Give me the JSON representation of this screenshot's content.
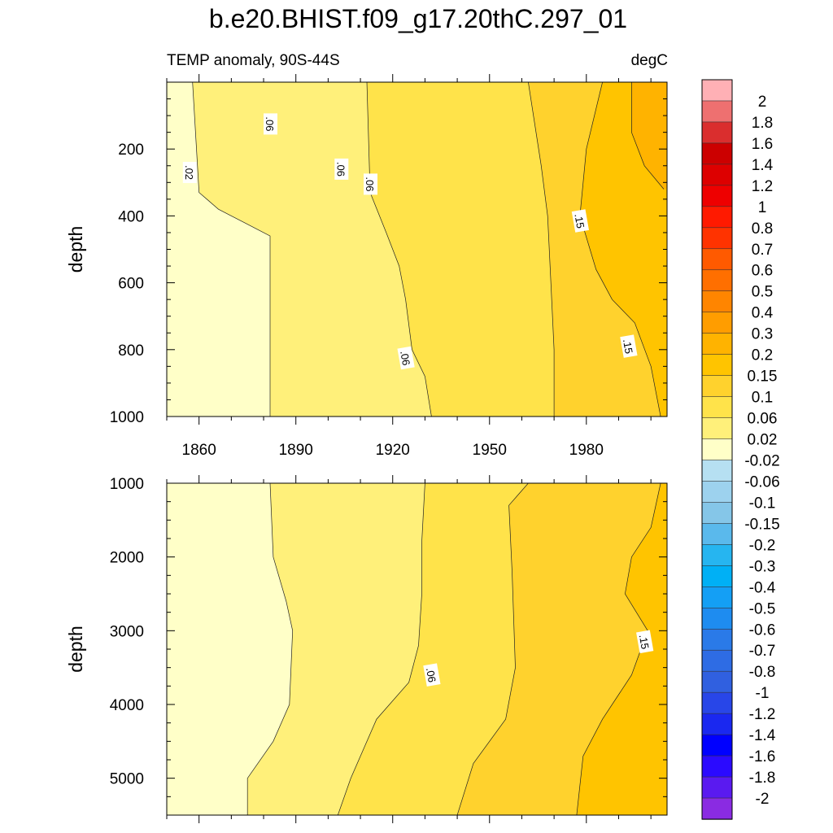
{
  "chart_data": {
    "type": "heatmap",
    "title": "b.e20.BHIST.f09_g17.20thC.297_01",
    "subtitle_left": "TEMP anomaly, 90S-44S",
    "subtitle_right": "degC",
    "x_ticks": [
      "1860",
      "1890",
      "1920",
      "1950",
      "1980"
    ],
    "x_range": [
      1850,
      2005
    ],
    "x_tick_values": [
      1860,
      1890,
      1920,
      1950,
      1980
    ],
    "panels": [
      {
        "name": "upper",
        "ylabel": "depth",
        "ylim": [
          0,
          1000
        ],
        "y_ticks": [
          "200",
          "400",
          "600",
          "800",
          "1000"
        ],
        "y_tick_values": [
          200,
          400,
          600,
          800,
          1000
        ],
        "contour_labels": [
          {
            "text": ".06",
            "x": 1882,
            "y": 125
          },
          {
            "text": ".02",
            "x": 1857,
            "y": 270
          },
          {
            "text": ".06",
            "x": 1904,
            "y": 260
          },
          {
            "text": ".06",
            "x": 1913,
            "y": 305
          },
          {
            "text": ".15",
            "x": 1978,
            "y": 415
          },
          {
            "text": ".06",
            "x": 1924,
            "y": 825
          },
          {
            "text": ".15",
            "x": 1993,
            "y": 790
          }
        ],
        "contour_boundaries": [
          {
            "level": 0.02,
            "points": [
              [
                1858,
                0
              ],
              [
                1860,
                330
              ],
              [
                1866,
                380
              ],
              [
                1870,
                400
              ],
              [
                1874,
                420
              ],
              [
                1882,
                460
              ],
              [
                1882,
                1000
              ]
            ]
          },
          {
            "level": 0.06,
            "points": [
              [
                1912,
                0
              ],
              [
                1913,
                330
              ],
              [
                1918,
                450
              ],
              [
                1922,
                550
              ],
              [
                1924,
                650
              ],
              [
                1926,
                800
              ],
              [
                1930,
                880
              ],
              [
                1932,
                1000
              ]
            ]
          },
          {
            "level": 0.1,
            "points": [
              [
                1962,
                0
              ],
              [
                1966,
                250
              ],
              [
                1968,
                400
              ],
              [
                1969,
                600
              ],
              [
                1970,
                800
              ],
              [
                1970,
                1000
              ]
            ]
          },
          {
            "level": 0.15,
            "points": [
              [
                1985,
                0
              ],
              [
                1980,
                200
              ],
              [
                1978,
                400
              ],
              [
                1983,
                560
              ],
              [
                1988,
                650
              ],
              [
                1995,
                720
              ],
              [
                2000,
                850
              ],
              [
                2003,
                1000
              ]
            ]
          },
          {
            "level": 0.2,
            "points": [
              [
                1994,
                0
              ],
              [
                1994,
                150
              ],
              [
                1998,
                250
              ],
              [
                2004,
                320
              ]
            ]
          }
        ]
      },
      {
        "name": "lower",
        "ylabel": "depth",
        "ylim": [
          1000,
          5500
        ],
        "y_ticks": [
          "1000",
          "2000",
          "3000",
          "4000",
          "5000"
        ],
        "y_tick_values": [
          1000,
          2000,
          3000,
          4000,
          5000
        ],
        "contour_labels": [
          {
            "text": ".06",
            "x": 1932,
            "y": 3600
          },
          {
            "text": ".15",
            "x": 1998,
            "y": 3150
          }
        ],
        "contour_boundaries": [
          {
            "level": 0.02,
            "points": [
              [
                1882,
                1000
              ],
              [
                1883,
                2000
              ],
              [
                1887,
                2600
              ],
              [
                1889,
                3000
              ],
              [
                1888,
                4000
              ],
              [
                1883,
                4500
              ],
              [
                1875,
                5000
              ],
              [
                1875,
                5500
              ]
            ]
          },
          {
            "level": 0.06,
            "points": [
              [
                1930,
                1000
              ],
              [
                1929,
                1800
              ],
              [
                1929,
                2500
              ],
              [
                1928,
                3200
              ],
              [
                1925,
                3700
              ],
              [
                1915,
                4200
              ],
              [
                1907,
                5000
              ],
              [
                1903,
                5500
              ]
            ]
          },
          {
            "level": 0.1,
            "points": [
              [
                1962,
                1000
              ],
              [
                1956,
                1300
              ],
              [
                1957,
                2200
              ],
              [
                1958,
                3500
              ],
              [
                1955,
                4200
              ],
              [
                1945,
                4800
              ],
              [
                1940,
                5500
              ]
            ]
          },
          {
            "level": 0.15,
            "points": [
              [
                2003,
                1000
              ],
              [
                2000,
                1600
              ],
              [
                1994,
                2000
              ],
              [
                1992,
                2500
              ],
              [
                1999,
                3000
              ],
              [
                1994,
                3600
              ],
              [
                1985,
                4200
              ],
              [
                1979,
                4700
              ],
              [
                1977,
                5500
              ]
            ]
          }
        ]
      }
    ],
    "colorbar": {
      "labels": [
        "2",
        "1.8",
        "1.6",
        "1.4",
        "1.2",
        "1",
        "0.8",
        "0.7",
        "0.6",
        "0.5",
        "0.4",
        "0.3",
        "0.2",
        "0.15",
        "0.1",
        "0.06",
        "0.02",
        "-0.02",
        "-0.06",
        "-0.1",
        "-0.15",
        "-0.2",
        "-0.3",
        "-0.4",
        "-0.5",
        "-0.6",
        "-0.7",
        "-0.8",
        "-1",
        "-1.2",
        "-1.4",
        "-1.6",
        "-1.8",
        "-2"
      ],
      "colors": [
        "#ffb0b5",
        "#ee7070",
        "#da2e2e",
        "#cc0000",
        "#dd0000",
        "#ee0000",
        "#ff1a00",
        "#ff3300",
        "#ff5a00",
        "#ff6f00",
        "#ff8500",
        "#ff9d00",
        "#ffb300",
        "#ffc400",
        "#ffd22d",
        "#ffe34a",
        "#fff07a",
        "#ffffc8",
        "#b6e0f2",
        "#9dd2ee",
        "#85c6e8",
        "#5ab9ec",
        "#26b5f0",
        "#00b0f5",
        "#149ff5",
        "#1e8cf0",
        "#2a7ae8",
        "#2e6ce4",
        "#3060e0",
        "#2846e8",
        "#1a28f0",
        "#0000ff",
        "#2b0aff",
        "#5a1af0",
        "#8a2be2"
      ]
    }
  }
}
